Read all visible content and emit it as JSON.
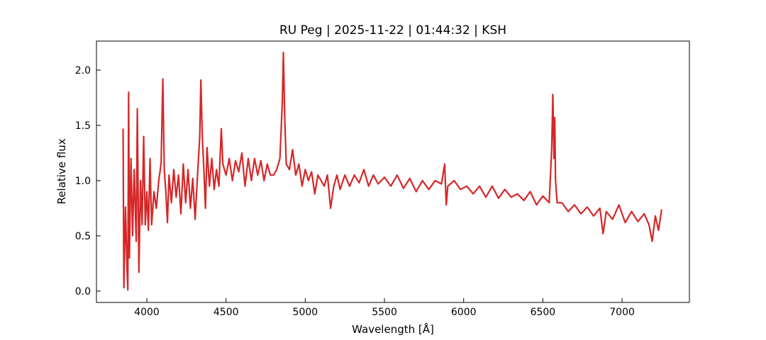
{
  "chart_data": {
    "type": "line",
    "title": "RU Peg | 2025-11-22 | 01:44:32 | KSH",
    "xlabel": "Wavelength [Å]",
    "ylabel": "Relative flux",
    "color": "#d62728",
    "xlim": [
      3682,
      7425
    ],
    "ylim": [
      -0.103,
      2.263
    ],
    "xticks": [
      4000,
      4500,
      5000,
      5500,
      6000,
      6500,
      7000
    ],
    "yticks": [
      {
        "value": 0,
        "label": "0.0"
      },
      0.5,
      {
        "value": 1,
        "label": "1.0"
      },
      1.5,
      {
        "value": 2,
        "label": "2.0"
      }
    ],
    "x": [
      3850,
      3855,
      3865,
      3875,
      3880,
      3885,
      3890,
      3900,
      3910,
      3920,
      3933,
      3940,
      3950,
      3960,
      3970,
      3980,
      3990,
      4000,
      4010,
      4020,
      4030,
      4045,
      4060,
      4075,
      4090,
      4101,
      4110,
      4120,
      4130,
      4140,
      4155,
      4170,
      4185,
      4200,
      4215,
      4230,
      4245,
      4260,
      4275,
      4290,
      4305,
      4320,
      4334,
      4341,
      4350,
      4360,
      4370,
      4380,
      4395,
      4410,
      4425,
      4440,
      4455,
      4470,
      4480,
      4500,
      4520,
      4540,
      4560,
      4580,
      4600,
      4620,
      4640,
      4660,
      4680,
      4700,
      4720,
      4740,
      4760,
      4780,
      4800,
      4820,
      4840,
      4855,
      4862,
      4870,
      4880,
      4900,
      4920,
      4940,
      4960,
      4980,
      5000,
      5020,
      5040,
      5060,
      5080,
      5100,
      5120,
      5140,
      5160,
      5180,
      5200,
      5220,
      5250,
      5280,
      5310,
      5340,
      5370,
      5400,
      5430,
      5460,
      5500,
      5540,
      5580,
      5620,
      5660,
      5700,
      5740,
      5780,
      5820,
      5860,
      5880,
      5890,
      5900,
      5940,
      5980,
      6020,
      6060,
      6100,
      6140,
      6180,
      6220,
      6260,
      6300,
      6340,
      6380,
      6420,
      6460,
      6500,
      6540,
      6556,
      6563,
      6570,
      6575,
      6580,
      6590,
      6620,
      6660,
      6700,
      6740,
      6780,
      6820,
      6860,
      6880,
      6900,
      6940,
      6980,
      7020,
      7060,
      7100,
      7140,
      7170,
      7190,
      7210,
      7230,
      7250
    ],
    "values": [
      1.47,
      0.03,
      0.76,
      0.2,
      0.01,
      1.8,
      0.3,
      1.2,
      0.5,
      1.1,
      0.45,
      1.65,
      0.17,
      1.0,
      0.6,
      1.4,
      0.6,
      0.9,
      0.55,
      1.2,
      0.6,
      0.9,
      0.75,
      1.0,
      1.15,
      1.92,
      1.1,
      0.9,
      0.62,
      1.05,
      0.8,
      1.1,
      0.85,
      1.05,
      0.7,
      1.15,
      0.8,
      1.1,
      0.75,
      1.02,
      0.65,
      1.05,
      1.4,
      1.91,
      1.4,
      1.1,
      0.75,
      1.3,
      0.95,
      1.2,
      0.92,
      1.1,
      0.95,
      1.47,
      1.15,
      1.05,
      1.2,
      1.0,
      1.18,
      1.08,
      1.25,
      0.95,
      1.2,
      1.0,
      1.2,
      1.05,
      1.18,
      1.0,
      1.15,
      1.05,
      1.05,
      1.1,
      1.2,
      1.7,
      2.16,
      1.6,
      1.15,
      1.1,
      1.28,
      1.05,
      1.15,
      0.95,
      1.1,
      1.0,
      1.08,
      0.88,
      1.05,
      1.0,
      0.95,
      1.05,
      0.75,
      0.95,
      1.05,
      0.92,
      1.05,
      0.95,
      1.05,
      0.98,
      1.1,
      0.95,
      1.05,
      0.97,
      1.03,
      0.95,
      1.05,
      0.93,
      1.02,
      0.9,
      1.0,
      0.92,
      1.0,
      0.97,
      1.15,
      0.78,
      0.95,
      1.0,
      0.92,
      0.95,
      0.88,
      0.95,
      0.85,
      0.95,
      0.84,
      0.92,
      0.85,
      0.88,
      0.82,
      0.9,
      0.78,
      0.86,
      0.8,
      1.3,
      1.78,
      1.2,
      1.57,
      1.0,
      0.8,
      0.8,
      0.72,
      0.78,
      0.7,
      0.76,
      0.68,
      0.75,
      0.52,
      0.72,
      0.65,
      0.78,
      0.62,
      0.72,
      0.63,
      0.7,
      0.6,
      0.45,
      0.68,
      0.55,
      0.74
    ]
  }
}
